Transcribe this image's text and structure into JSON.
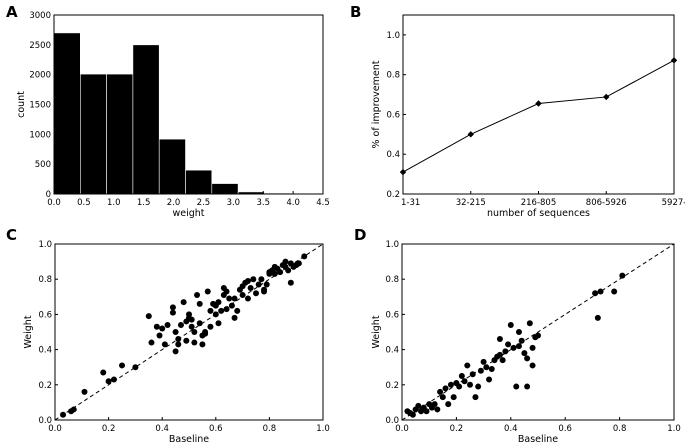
{
  "chart_data": [
    {
      "panel": "A",
      "type": "bar",
      "xlabel": "weight",
      "ylabel": "count",
      "xlim": [
        0,
        4.5
      ],
      "ylim": [
        0,
        3000
      ],
      "xticks": [
        "0.0",
        "0.5",
        "1.0",
        "1.5",
        "2.0",
        "2.5",
        "3.0",
        "3.5",
        "4.0",
        "4.5"
      ],
      "yticks": [
        "0",
        "500",
        "1000",
        "1500",
        "2000",
        "2500",
        "3000"
      ],
      "bins": [
        {
          "x0": 0.0,
          "x1": 0.44,
          "count": 2700
        },
        {
          "x0": 0.44,
          "x1": 0.88,
          "count": 2010
        },
        {
          "x0": 0.88,
          "x1": 1.32,
          "count": 2010
        },
        {
          "x0": 1.32,
          "x1": 1.76,
          "count": 2500
        },
        {
          "x0": 1.76,
          "x1": 2.2,
          "count": 920
        },
        {
          "x0": 2.2,
          "x1": 2.64,
          "count": 400
        },
        {
          "x0": 2.64,
          "x1": 3.08,
          "count": 175
        },
        {
          "x0": 3.08,
          "x1": 3.52,
          "count": 35
        },
        {
          "x0": 3.52,
          "x1": 3.96,
          "count": 15
        },
        {
          "x0": 3.96,
          "x1": 4.4,
          "count": 8
        }
      ]
    },
    {
      "panel": "B",
      "type": "line",
      "xlabel": "number of sequences",
      "ylabel": "% of improvement",
      "categories": [
        "1-31",
        "32-215",
        "216-805",
        "806-5926",
        "5927-"
      ],
      "values": [
        0.31,
        0.5,
        0.655,
        0.688,
        0.872
      ],
      "ylim": [
        0.2,
        1.1
      ],
      "yticks": [
        "0.2",
        "0.4",
        "0.6",
        "0.8",
        "1.0"
      ]
    },
    {
      "panel": "C",
      "type": "scatter",
      "xlabel": "Baseline",
      "ylabel": "Weight",
      "xlim": [
        0,
        1
      ],
      "ylim": [
        0,
        1
      ],
      "xticks": [
        "0.0",
        "0.2",
        "0.4",
        "0.6",
        "0.8",
        "1.0"
      ],
      "yticks": [
        "0.0",
        "0.2",
        "0.4",
        "0.6",
        "0.8",
        "1.0"
      ],
      "points": [
        [
          0.03,
          0.03
        ],
        [
          0.06,
          0.05
        ],
        [
          0.07,
          0.06
        ],
        [
          0.11,
          0.16
        ],
        [
          0.18,
          0.27
        ],
        [
          0.2,
          0.22
        ],
        [
          0.22,
          0.23
        ],
        [
          0.25,
          0.31
        ],
        [
          0.3,
          0.3
        ],
        [
          0.35,
          0.59
        ],
        [
          0.36,
          0.44
        ],
        [
          0.38,
          0.53
        ],
        [
          0.39,
          0.48
        ],
        [
          0.4,
          0.52
        ],
        [
          0.41,
          0.43
        ],
        [
          0.42,
          0.54
        ],
        [
          0.44,
          0.61
        ],
        [
          0.44,
          0.64
        ],
        [
          0.45,
          0.5
        ],
        [
          0.45,
          0.39
        ],
        [
          0.46,
          0.46
        ],
        [
          0.46,
          0.43
        ],
        [
          0.47,
          0.54
        ],
        [
          0.48,
          0.67
        ],
        [
          0.49,
          0.56
        ],
        [
          0.49,
          0.45
        ],
        [
          0.5,
          0.58
        ],
        [
          0.5,
          0.6
        ],
        [
          0.51,
          0.57
        ],
        [
          0.51,
          0.53
        ],
        [
          0.52,
          0.5
        ],
        [
          0.52,
          0.44
        ],
        [
          0.53,
          0.71
        ],
        [
          0.54,
          0.55
        ],
        [
          0.54,
          0.66
        ],
        [
          0.55,
          0.48
        ],
        [
          0.55,
          0.43
        ],
        [
          0.56,
          0.5
        ],
        [
          0.56,
          0.49
        ],
        [
          0.57,
          0.73
        ],
        [
          0.58,
          0.53
        ],
        [
          0.58,
          0.62
        ],
        [
          0.59,
          0.66
        ],
        [
          0.6,
          0.65
        ],
        [
          0.6,
          0.6
        ],
        [
          0.61,
          0.67
        ],
        [
          0.61,
          0.55
        ],
        [
          0.62,
          0.62
        ],
        [
          0.63,
          0.71
        ],
        [
          0.63,
          0.75
        ],
        [
          0.64,
          0.73
        ],
        [
          0.64,
          0.63
        ],
        [
          0.65,
          0.69
        ],
        [
          0.66,
          0.65
        ],
        [
          0.67,
          0.58
        ],
        [
          0.67,
          0.69
        ],
        [
          0.68,
          0.62
        ],
        [
          0.69,
          0.74
        ],
        [
          0.7,
          0.71
        ],
        [
          0.7,
          0.76
        ],
        [
          0.71,
          0.78
        ],
        [
          0.72,
          0.69
        ],
        [
          0.72,
          0.79
        ],
        [
          0.73,
          0.75
        ],
        [
          0.74,
          0.8
        ],
        [
          0.75,
          0.72
        ],
        [
          0.76,
          0.77
        ],
        [
          0.77,
          0.8
        ],
        [
          0.78,
          0.74
        ],
        [
          0.78,
          0.73
        ],
        [
          0.79,
          0.77
        ],
        [
          0.8,
          0.84
        ],
        [
          0.8,
          0.83
        ],
        [
          0.81,
          0.85
        ],
        [
          0.82,
          0.83
        ],
        [
          0.83,
          0.86
        ],
        [
          0.84,
          0.84
        ],
        [
          0.85,
          0.88
        ],
        [
          0.86,
          0.87
        ],
        [
          0.86,
          0.9
        ],
        [
          0.87,
          0.85
        ],
        [
          0.88,
          0.78
        ],
        [
          0.88,
          0.89
        ],
        [
          0.89,
          0.87
        ],
        [
          0.9,
          0.88
        ],
        [
          0.91,
          0.89
        ],
        [
          0.93,
          0.93
        ],
        [
          0.82,
          0.87
        ]
      ]
    },
    {
      "panel": "D",
      "type": "scatter",
      "xlabel": "Baseline",
      "ylabel": "Weight",
      "xlim": [
        0,
        1
      ],
      "ylim": [
        0,
        1
      ],
      "xticks": [
        "0.0",
        "0.2",
        "0.4",
        "0.6",
        "0.8",
        "1.0"
      ],
      "yticks": [
        "0.0",
        "0.2",
        "0.4",
        "0.6",
        "0.8",
        "1.0"
      ],
      "points": [
        [
          0.02,
          0.05
        ],
        [
          0.03,
          0.04
        ],
        [
          0.04,
          0.03
        ],
        [
          0.05,
          0.06
        ],
        [
          0.06,
          0.08
        ],
        [
          0.07,
          0.05
        ],
        [
          0.08,
          0.07
        ],
        [
          0.09,
          0.05
        ],
        [
          0.1,
          0.09
        ],
        [
          0.11,
          0.07
        ],
        [
          0.12,
          0.09
        ],
        [
          0.13,
          0.06
        ],
        [
          0.14,
          0.16
        ],
        [
          0.15,
          0.13
        ],
        [
          0.16,
          0.18
        ],
        [
          0.17,
          0.09
        ],
        [
          0.18,
          0.2
        ],
        [
          0.19,
          0.13
        ],
        [
          0.2,
          0.21
        ],
        [
          0.21,
          0.19
        ],
        [
          0.22,
          0.25
        ],
        [
          0.23,
          0.22
        ],
        [
          0.24,
          0.31
        ],
        [
          0.25,
          0.2
        ],
        [
          0.26,
          0.26
        ],
        [
          0.27,
          0.13
        ],
        [
          0.28,
          0.19
        ],
        [
          0.29,
          0.28
        ],
        [
          0.3,
          0.33
        ],
        [
          0.31,
          0.3
        ],
        [
          0.32,
          0.23
        ],
        [
          0.33,
          0.29
        ],
        [
          0.34,
          0.34
        ],
        [
          0.35,
          0.36
        ],
        [
          0.36,
          0.37
        ],
        [
          0.37,
          0.34
        ],
        [
          0.38,
          0.39
        ],
        [
          0.39,
          0.43
        ],
        [
          0.4,
          0.54
        ],
        [
          0.41,
          0.41
        ],
        [
          0.42,
          0.19
        ],
        [
          0.43,
          0.42
        ],
        [
          0.43,
          0.5
        ],
        [
          0.44,
          0.45
        ],
        [
          0.45,
          0.38
        ],
        [
          0.46,
          0.35
        ],
        [
          0.46,
          0.19
        ],
        [
          0.47,
          0.55
        ],
        [
          0.48,
          0.31
        ],
        [
          0.48,
          0.41
        ],
        [
          0.49,
          0.47
        ],
        [
          0.5,
          0.48
        ],
        [
          0.71,
          0.72
        ],
        [
          0.72,
          0.58
        ],
        [
          0.73,
          0.73
        ],
        [
          0.78,
          0.73
        ],
        [
          0.81,
          0.82
        ],
        [
          0.36,
          0.46
        ]
      ]
    }
  ]
}
